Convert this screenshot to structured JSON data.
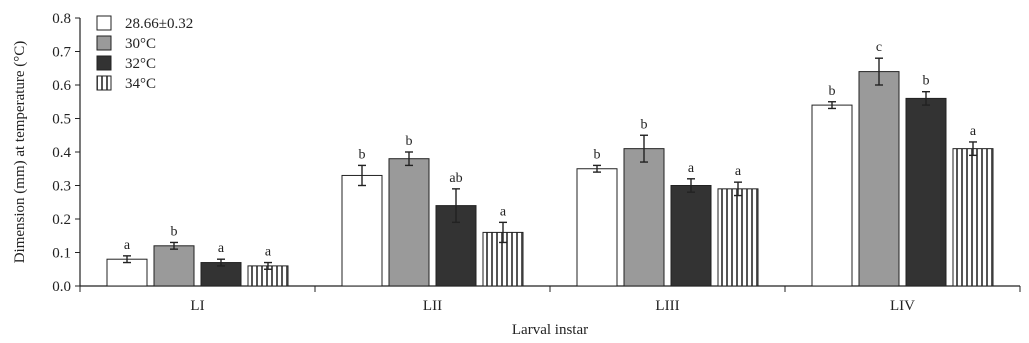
{
  "chart_data": {
    "type": "bar",
    "xlabel": "Larval instar",
    "ylabel": "Dimension (mm) at temperature (°C)",
    "ylim": [
      0,
      0.8
    ],
    "yticks": [
      "0.0",
      "0.1",
      "0.2",
      "0.3",
      "0.4",
      "0.5",
      "0.6",
      "0.7",
      "0.8"
    ],
    "grid": false,
    "legend_position": "top-left",
    "categories": [
      "LI",
      "LII",
      "LIII",
      "LIV"
    ],
    "series": [
      {
        "name": "28.66±0.32",
        "fill": "#ffffff",
        "pattern": "none",
        "values": [
          0.08,
          0.33,
          0.35,
          0.54
        ],
        "errors": [
          0.01,
          0.03,
          0.01,
          0.01
        ],
        "labels": [
          "a",
          "b",
          "b",
          "b"
        ]
      },
      {
        "name": "30°C",
        "fill": "#9a9a9a",
        "pattern": "none",
        "values": [
          0.12,
          0.38,
          0.41,
          0.64
        ],
        "errors": [
          0.01,
          0.02,
          0.04,
          0.04
        ],
        "labels": [
          "b",
          "b",
          "b",
          "c"
        ]
      },
      {
        "name": "32°C",
        "fill": "#333333",
        "pattern": "none",
        "values": [
          0.07,
          0.24,
          0.3,
          0.56
        ],
        "errors": [
          0.01,
          0.05,
          0.02,
          0.02
        ],
        "labels": [
          "a",
          "ab",
          "a",
          "b"
        ]
      },
      {
        "name": "34°C",
        "fill": "#ffffff",
        "pattern": "vertical-stripes",
        "values": [
          0.06,
          0.16,
          0.29,
          0.41
        ],
        "errors": [
          0.01,
          0.03,
          0.02,
          0.02
        ],
        "labels": [
          "a",
          "a",
          "a",
          "a"
        ]
      }
    ]
  }
}
